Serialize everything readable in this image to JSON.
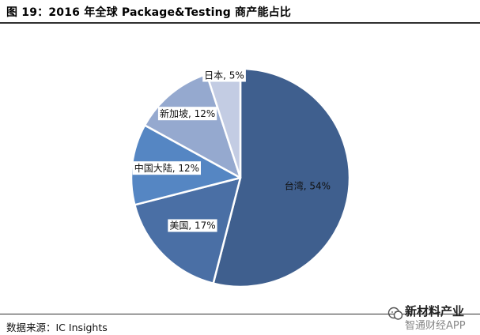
{
  "figure": {
    "title": "图 19：2016 年全球 Package&Testing 商产能占比",
    "source": "数据来源：IC Insights"
  },
  "watermark": {
    "line1": "新材料产业",
    "line2": "智通财经APP"
  },
  "chart_data": {
    "type": "pie",
    "title": "图 19：2016 年全球 Package&Testing 商产能占比",
    "slices": [
      {
        "label": "台湾, 54%",
        "value": 54,
        "color": "#3f5f8e"
      },
      {
        "label": "美国, 17%",
        "value": 17,
        "color": "#4a6fa5"
      },
      {
        "label": "中国大陆, 12%",
        "value": 12,
        "color": "#5586c3"
      },
      {
        "label": "新加坡, 12%",
        "value": 12,
        "color": "#95a9cf"
      },
      {
        "label": "日本, 5%",
        "value": 5,
        "color": "#c3cce3"
      }
    ],
    "start": "12 o'clock",
    "direction": "clockwise",
    "legend": "none"
  }
}
